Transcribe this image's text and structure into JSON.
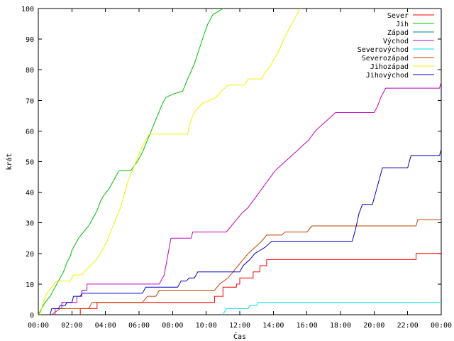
{
  "chart_data": {
    "type": "line",
    "xlabel": "Čas",
    "ylabel": "krát",
    "ylim": [
      0,
      100
    ],
    "xlim": [
      0,
      24
    ],
    "y_ticks": [
      0,
      10,
      20,
      30,
      40,
      50,
      60,
      70,
      80,
      90,
      100
    ],
    "x_tick_values": [
      0,
      2,
      4,
      6,
      8,
      10,
      12,
      14,
      16,
      18,
      20,
      22,
      24
    ],
    "x_tick_labels": [
      "00:00",
      "02:00",
      "04:00",
      "06:00",
      "08:00",
      "10:00",
      "12:00",
      "14:00",
      "16:00",
      "18:00",
      "20:00",
      "22:00",
      "00:00"
    ],
    "grid": false,
    "legend_position": "top-right",
    "series": [
      {
        "name": "Sever",
        "color": "#ff0000",
        "points": [
          [
            2.5,
            0
          ],
          [
            2.5,
            2
          ],
          [
            3.5,
            2
          ],
          [
            3.5,
            4
          ],
          [
            10.5,
            4
          ],
          [
            10.5,
            6
          ],
          [
            11,
            6
          ],
          [
            11,
            9
          ],
          [
            11.8,
            9
          ],
          [
            11.8,
            10
          ],
          [
            12,
            10
          ],
          [
            12,
            12
          ],
          [
            12.8,
            12
          ],
          [
            12.8,
            14
          ],
          [
            13.2,
            14
          ],
          [
            13.2,
            16
          ],
          [
            13.6,
            16
          ],
          [
            13.6,
            18
          ],
          [
            22.5,
            18
          ],
          [
            22.5,
            20
          ],
          [
            24,
            20
          ]
        ]
      },
      {
        "name": "Jih",
        "color": "#00c000",
        "points": [
          [
            0,
            0
          ],
          [
            0.2,
            2
          ],
          [
            0.4,
            4
          ],
          [
            0.7,
            6
          ],
          [
            0.9,
            8
          ],
          [
            1.1,
            10
          ],
          [
            1.3,
            12
          ],
          [
            1.5,
            14
          ],
          [
            1.7,
            17
          ],
          [
            1.9,
            19
          ],
          [
            2.0,
            21
          ],
          [
            2.2,
            23
          ],
          [
            2.4,
            25
          ],
          [
            2.7,
            27
          ],
          [
            3.0,
            29
          ],
          [
            3.2,
            31
          ],
          [
            3.5,
            34
          ],
          [
            3.7,
            37
          ],
          [
            3.9,
            39
          ],
          [
            4.2,
            41
          ],
          [
            4.5,
            44
          ],
          [
            4.8,
            47
          ],
          [
            5.5,
            47
          ],
          [
            5.9,
            50
          ],
          [
            6.2,
            53
          ],
          [
            6.5,
            57
          ],
          [
            6.8,
            61
          ],
          [
            7.1,
            65
          ],
          [
            7.4,
            69
          ],
          [
            7.6,
            71
          ],
          [
            8.0,
            72
          ],
          [
            8.6,
            73
          ],
          [
            8.9,
            77
          ],
          [
            9.3,
            82
          ],
          [
            9.6,
            87
          ],
          [
            9.9,
            92
          ],
          [
            10.1,
            95
          ],
          [
            10.4,
            98
          ],
          [
            10.7,
            99
          ],
          [
            11.0,
            100
          ]
        ]
      },
      {
        "name": "Západ",
        "color": "#0080a0",
        "points": []
      },
      {
        "name": "Východ",
        "color": "#c000c0",
        "points": [
          [
            1.0,
            0
          ],
          [
            1.0,
            2
          ],
          [
            1.4,
            2
          ],
          [
            1.4,
            4
          ],
          [
            2.3,
            4
          ],
          [
            2.3,
            6
          ],
          [
            2.6,
            6
          ],
          [
            2.6,
            8
          ],
          [
            2.9,
            8
          ],
          [
            2.9,
            10
          ],
          [
            7.2,
            10
          ],
          [
            7.5,
            13
          ],
          [
            7.6,
            16
          ],
          [
            7.7,
            19
          ],
          [
            7.8,
            22
          ],
          [
            7.9,
            25
          ],
          [
            9.1,
            25
          ],
          [
            9.2,
            27
          ],
          [
            11.2,
            27
          ],
          [
            11.5,
            29
          ],
          [
            11.8,
            31
          ],
          [
            12.1,
            33
          ],
          [
            12.5,
            35
          ],
          [
            12.9,
            38
          ],
          [
            13.3,
            41
          ],
          [
            13.7,
            44
          ],
          [
            14.1,
            47
          ],
          [
            14.5,
            49
          ],
          [
            14.9,
            51
          ],
          [
            15.3,
            53
          ],
          [
            15.7,
            55
          ],
          [
            16.1,
            57
          ],
          [
            16.5,
            60
          ],
          [
            16.9,
            62
          ],
          [
            17.3,
            64
          ],
          [
            17.7,
            66
          ],
          [
            20.0,
            66
          ],
          [
            20.2,
            68
          ],
          [
            20.4,
            71
          ],
          [
            20.7,
            74
          ],
          [
            23.9,
            74
          ],
          [
            24,
            76
          ]
        ]
      },
      {
        "name": "Severovýchod",
        "color": "#00e0e0",
        "points": [
          [
            11.0,
            0
          ],
          [
            11.2,
            2
          ],
          [
            12.5,
            2
          ],
          [
            12.6,
            3
          ],
          [
            13.0,
            3
          ],
          [
            13.1,
            4
          ],
          [
            24,
            4
          ]
        ]
      },
      {
        "name": "Severozápad",
        "color": "#c04000",
        "points": [
          [
            0.8,
            0
          ],
          [
            1.3,
            2
          ],
          [
            3.0,
            2
          ],
          [
            3.2,
            4
          ],
          [
            6.2,
            4
          ],
          [
            6.5,
            6
          ],
          [
            7.0,
            6
          ],
          [
            7.2,
            8
          ],
          [
            10.5,
            8
          ],
          [
            10.8,
            10
          ],
          [
            11.3,
            12
          ],
          [
            11.6,
            14
          ],
          [
            11.9,
            16
          ],
          [
            12.2,
            18
          ],
          [
            12.5,
            20
          ],
          [
            12.9,
            22
          ],
          [
            13.3,
            24
          ],
          [
            13.6,
            26
          ],
          [
            14.5,
            26
          ],
          [
            14.7,
            27
          ],
          [
            16.0,
            27
          ],
          [
            16.3,
            29
          ],
          [
            22.5,
            29
          ],
          [
            22.6,
            31
          ],
          [
            24,
            31
          ]
        ]
      },
      {
        "name": "Jihozápad",
        "color": "#f0f000",
        "points": [
          [
            0.1,
            0
          ],
          [
            0.3,
            4
          ],
          [
            0.5,
            7
          ],
          [
            0.8,
            9
          ],
          [
            1.1,
            11
          ],
          [
            1.9,
            11
          ],
          [
            2.1,
            13
          ],
          [
            2.6,
            13
          ],
          [
            2.9,
            15
          ],
          [
            3.3,
            17
          ],
          [
            3.6,
            19
          ],
          [
            3.8,
            21
          ],
          [
            4.1,
            24
          ],
          [
            4.3,
            27
          ],
          [
            4.6,
            31
          ],
          [
            4.9,
            35
          ],
          [
            5.1,
            39
          ],
          [
            5.3,
            43
          ],
          [
            5.6,
            47
          ],
          [
            5.9,
            51
          ],
          [
            6.1,
            54
          ],
          [
            6.4,
            57
          ],
          [
            6.6,
            59
          ],
          [
            8.3,
            59
          ],
          [
            8.9,
            59
          ],
          [
            9.0,
            62
          ],
          [
            9.2,
            65
          ],
          [
            9.4,
            67
          ],
          [
            9.8,
            69
          ],
          [
            10.6,
            71
          ],
          [
            10.9,
            73
          ],
          [
            11.3,
            75
          ],
          [
            12.3,
            75
          ],
          [
            12.5,
            77
          ],
          [
            13.3,
            77
          ],
          [
            13.5,
            79
          ],
          [
            13.8,
            81
          ],
          [
            14.1,
            84
          ],
          [
            14.4,
            87
          ],
          [
            14.7,
            91
          ],
          [
            15.0,
            94
          ],
          [
            15.3,
            97
          ],
          [
            15.6,
            100
          ]
        ]
      },
      {
        "name": "Jihovýchod",
        "color": "#0000c0",
        "points": [
          [
            0.7,
            0
          ],
          [
            0.8,
            2
          ],
          [
            1.2,
            2
          ],
          [
            1.3,
            3
          ],
          [
            1.6,
            3
          ],
          [
            1.7,
            4
          ],
          [
            2.0,
            4
          ],
          [
            2.1,
            6
          ],
          [
            2.5,
            6
          ],
          [
            2.6,
            7
          ],
          [
            6.2,
            7
          ],
          [
            6.4,
            9
          ],
          [
            8.3,
            9
          ],
          [
            8.5,
            11
          ],
          [
            8.8,
            11
          ],
          [
            9.0,
            12
          ],
          [
            9.3,
            12
          ],
          [
            9.5,
            14
          ],
          [
            12.0,
            14
          ],
          [
            12.2,
            16
          ],
          [
            12.6,
            18
          ],
          [
            12.9,
            20
          ],
          [
            13.2,
            21
          ],
          [
            13.5,
            22
          ],
          [
            13.9,
            24
          ],
          [
            18.7,
            24
          ],
          [
            18.9,
            28
          ],
          [
            19.1,
            33
          ],
          [
            19.3,
            36
          ],
          [
            19.9,
            36
          ],
          [
            20.1,
            40
          ],
          [
            20.3,
            44
          ],
          [
            20.5,
            48
          ],
          [
            22.0,
            48
          ],
          [
            22.2,
            52
          ],
          [
            23.9,
            52
          ],
          [
            24,
            54
          ]
        ]
      }
    ]
  }
}
